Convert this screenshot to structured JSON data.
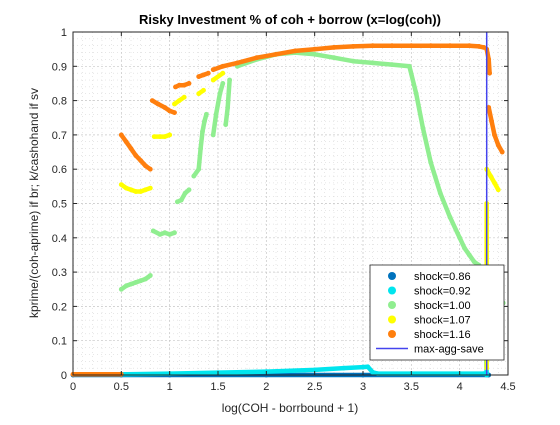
{
  "chart_data": {
    "type": "scatter",
    "title": "Risky Investment % of coh + borrow (x=log(coh))",
    "xlabel": "log(COH - borrbound + 1)",
    "ylabel": "kprime/(coh-aprime) if br; k/cashohand if sv",
    "xlim": [
      0,
      4.5
    ],
    "ylim": [
      0,
      1
    ],
    "xticks": [
      "0",
      "0.5",
      "1",
      "1.5",
      "2",
      "2.5",
      "3",
      "3.5",
      "4",
      "4.5"
    ],
    "yticks": [
      "0",
      "0.1",
      "0.2",
      "0.3",
      "0.4",
      "0.5",
      "0.6",
      "0.7",
      "0.8",
      "0.9",
      "1"
    ],
    "grid": true,
    "minor_grid": true,
    "legend_position": "bottom-right",
    "series": [
      {
        "name": "shock=0.86",
        "color": "#0072bd",
        "marker": "dot",
        "segments": [
          [
            [
              0,
              0
            ],
            [
              0.5,
              0
            ],
            [
              1.0,
              0
            ],
            [
              2.0,
              0
            ],
            [
              3.0,
              0
            ],
            [
              4.3,
              0
            ]
          ]
        ]
      },
      {
        "name": "shock=0.92",
        "color": "#00e5ee",
        "marker": "dot",
        "segments": [
          [
            [
              0.5,
              0.002
            ],
            [
              1.0,
              0.004
            ],
            [
              1.5,
              0.007
            ],
            [
              2.0,
              0.01
            ],
            [
              2.5,
              0.015
            ],
            [
              2.8,
              0.02
            ],
            [
              3.0,
              0.023
            ],
            [
              3.05,
              0.024
            ],
            [
              3.1,
              0.008
            ],
            [
              3.15,
              0.004
            ],
            [
              3.5,
              0.004
            ],
            [
              4.0,
              0.004
            ],
            [
              4.25,
              0.004
            ]
          ],
          [
            [
              4.25,
              0.31
            ],
            [
              4.26,
              0.2
            ],
            [
              4.27,
              0.1
            ],
            [
              4.28,
              0.0
            ]
          ]
        ]
      },
      {
        "name": "shock=1.00",
        "color": "#90ee90",
        "marker": "dot",
        "segments": [
          [
            [
              0.5,
              0.25
            ],
            [
              0.55,
              0.26
            ],
            [
              0.6,
              0.265
            ],
            [
              0.65,
              0.27
            ],
            [
              0.7,
              0.275
            ],
            [
              0.75,
              0.28
            ],
            [
              0.8,
              0.29
            ]
          ],
          [
            [
              0.83,
              0.42
            ],
            [
              0.9,
              0.41
            ],
            [
              0.95,
              0.415
            ],
            [
              1.0,
              0.41
            ],
            [
              1.05,
              0.415
            ]
          ],
          [
            [
              1.08,
              0.505
            ],
            [
              1.12,
              0.51
            ],
            [
              1.16,
              0.53
            ],
            [
              1.2,
              0.54
            ]
          ],
          [
            [
              1.25,
              0.58
            ],
            [
              1.3,
              0.6
            ],
            [
              1.32,
              0.66
            ],
            [
              1.34,
              0.71
            ],
            [
              1.36,
              0.74
            ],
            [
              1.38,
              0.76
            ]
          ],
          [
            [
              1.45,
              0.7
            ],
            [
              1.48,
              0.76
            ],
            [
              1.52,
              0.82
            ],
            [
              1.55,
              0.85
            ]
          ],
          [
            [
              1.58,
              0.73
            ],
            [
              1.6,
              0.78
            ],
            [
              1.62,
              0.86
            ]
          ],
          [
            [
              1.7,
              0.9
            ],
            [
              1.9,
              0.92
            ],
            [
              2.1,
              0.935
            ],
            [
              2.3,
              0.94
            ],
            [
              2.5,
              0.935
            ],
            [
              2.7,
              0.925
            ],
            [
              2.9,
              0.915
            ],
            [
              3.1,
              0.91
            ],
            [
              3.3,
              0.905
            ],
            [
              3.48,
              0.9
            ],
            [
              3.55,
              0.82
            ],
            [
              3.62,
              0.72
            ],
            [
              3.7,
              0.62
            ],
            [
              3.8,
              0.53
            ],
            [
              3.9,
              0.46
            ],
            [
              4.0,
              0.4
            ],
            [
              4.05,
              0.37
            ],
            [
              4.1,
              0.35
            ],
            [
              4.15,
              0.33
            ],
            [
              4.2,
              0.32
            ]
          ],
          [
            [
              4.3,
              0.3
            ],
            [
              4.35,
              0.26
            ],
            [
              4.4,
              0.23
            ],
            [
              4.45,
              0.21
            ]
          ]
        ]
      },
      {
        "name": "shock=1.07",
        "color": "#ffff00",
        "marker": "dot",
        "segments": [
          [
            [
              0.5,
              0.555
            ],
            [
              0.55,
              0.545
            ],
            [
              0.6,
              0.54
            ],
            [
              0.65,
              0.535
            ],
            [
              0.7,
              0.535
            ],
            [
              0.75,
              0.54
            ],
            [
              0.8,
              0.545
            ]
          ],
          [
            [
              0.84,
              0.695
            ],
            [
              0.9,
              0.695
            ],
            [
              0.95,
              0.695
            ],
            [
              1.0,
              0.7
            ]
          ],
          [
            [
              1.05,
              0.79
            ],
            [
              1.1,
              0.8
            ],
            [
              1.15,
              0.81
            ]
          ],
          [
            [
              1.3,
              0.82
            ],
            [
              1.35,
              0.83
            ]
          ],
          [
            [
              1.45,
              0.86
            ],
            [
              1.55,
              0.88
            ]
          ],
          [
            [
              4.28,
              0.6
            ],
            [
              4.32,
              0.58
            ],
            [
              4.36,
              0.56
            ],
            [
              4.4,
              0.54
            ]
          ],
          [
            [
              4.28,
              0.5
            ],
            [
              4.28,
              0.4
            ],
            [
              4.28,
              0.3
            ],
            [
              4.28,
              0.2
            ],
            [
              4.28,
              0.1
            ],
            [
              4.28,
              0.02
            ]
          ]
        ]
      },
      {
        "name": "shock=1.16",
        "color": "#ff7f0e",
        "marker": "dot",
        "segments": [
          [
            [
              0,
              0.002
            ],
            [
              0.5,
              0.002
            ]
          ],
          [
            [
              0.5,
              0.7
            ],
            [
              0.55,
              0.68
            ],
            [
              0.6,
              0.66
            ],
            [
              0.65,
              0.64
            ],
            [
              0.7,
              0.625
            ],
            [
              0.75,
              0.61
            ],
            [
              0.8,
              0.6
            ]
          ],
          [
            [
              0.82,
              0.8
            ],
            [
              0.88,
              0.79
            ],
            [
              0.95,
              0.78
            ],
            [
              1.0,
              0.77
            ],
            [
              1.05,
              0.765
            ]
          ],
          [
            [
              1.06,
              0.84
            ],
            [
              1.1,
              0.845
            ],
            [
              1.15,
              0.845
            ],
            [
              1.2,
              0.85
            ]
          ],
          [
            [
              1.3,
              0.87
            ],
            [
              1.35,
              0.875
            ],
            [
              1.4,
              0.88
            ]
          ],
          [
            [
              1.45,
              0.89
            ],
            [
              1.55,
              0.9
            ],
            [
              1.7,
              0.91
            ],
            [
              1.9,
              0.925
            ],
            [
              2.1,
              0.935
            ],
            [
              2.3,
              0.945
            ],
            [
              2.5,
              0.95
            ],
            [
              2.7,
              0.955
            ],
            [
              2.9,
              0.958
            ],
            [
              3.1,
              0.96
            ],
            [
              3.3,
              0.96
            ],
            [
              3.5,
              0.96
            ],
            [
              3.7,
              0.96
            ],
            [
              3.9,
              0.96
            ],
            [
              4.1,
              0.96
            ],
            [
              4.2,
              0.958
            ],
            [
              4.25,
              0.955
            ]
          ],
          [
            [
              4.28,
              0.95
            ],
            [
              4.3,
              0.92
            ],
            [
              4.31,
              0.88
            ]
          ],
          [
            [
              4.3,
              0.78
            ],
            [
              4.33,
              0.74
            ],
            [
              4.36,
              0.7
            ],
            [
              4.4,
              0.67
            ],
            [
              4.44,
              0.65
            ]
          ]
        ]
      },
      {
        "name": "max-agg-save",
        "color": "#4444ee",
        "marker": "line",
        "segments": [
          [
            [
              4.28,
              0
            ],
            [
              4.28,
              1
            ]
          ]
        ]
      }
    ]
  }
}
